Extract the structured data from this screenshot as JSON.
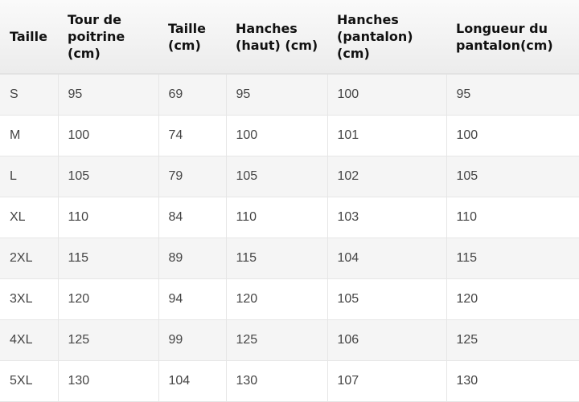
{
  "headers": [
    "Taille",
    "Tour de poitrine (cm)",
    "Taille (cm)",
    "Hanches (haut) (cm)",
    "Hanches (pantalon) (cm)",
    "Longueur du pantalon(cm)"
  ],
  "rows": [
    [
      "S",
      "95",
      "69",
      "95",
      "100",
      "95"
    ],
    [
      "M",
      "100",
      "74",
      "100",
      "101",
      "100"
    ],
    [
      "L",
      "105",
      "79",
      "105",
      "102",
      "105"
    ],
    [
      "XL",
      "110",
      "84",
      "110",
      "103",
      "110"
    ],
    [
      "2XL",
      "115",
      "89",
      "115",
      "104",
      "115"
    ],
    [
      "3XL",
      "120",
      "94",
      "120",
      "105",
      "120"
    ],
    [
      "4XL",
      "125",
      "99",
      "125",
      "106",
      "125"
    ],
    [
      "5XL",
      "130",
      "104",
      "130",
      "107",
      "130"
    ]
  ]
}
